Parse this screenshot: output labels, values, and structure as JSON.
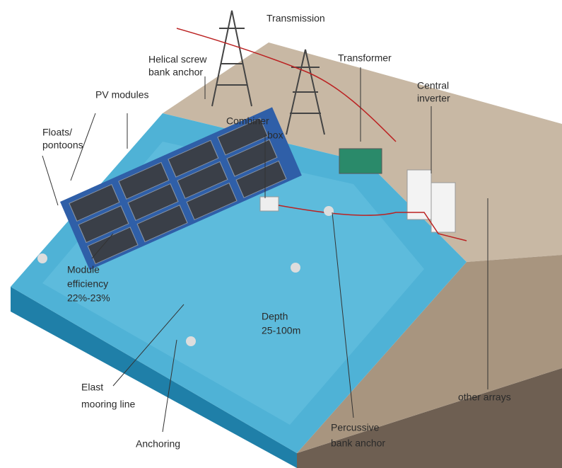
{
  "labels": [
    {
      "lines": [
        "Transmission"
      ]
    },
    {
      "lines": [
        "Helical screw",
        "bank anchor"
      ]
    },
    {
      "lines": [
        "Transformer"
      ]
    },
    {
      "lines": [
        "PV modules"
      ]
    },
    {
      "lines": [
        "Central",
        "inverter"
      ]
    },
    {
      "lines": [
        "Combiner",
        "box"
      ]
    },
    {
      "lines": [
        "Floats/",
        "pontoons"
      ]
    },
    {
      "lines": [
        "Module",
        "efficiency",
        "22%-23%"
      ]
    },
    {
      "lines": [
        "Depth",
        "25-100m"
      ]
    },
    {
      "lines": [
        "Elast",
        "mooring line"
      ]
    },
    {
      "lines": [
        "other arrays"
      ]
    },
    {
      "lines": [
        "Anchoring"
      ]
    },
    {
      "lines": [
        "Percussive",
        "bank anchor"
      ]
    }
  ]
}
